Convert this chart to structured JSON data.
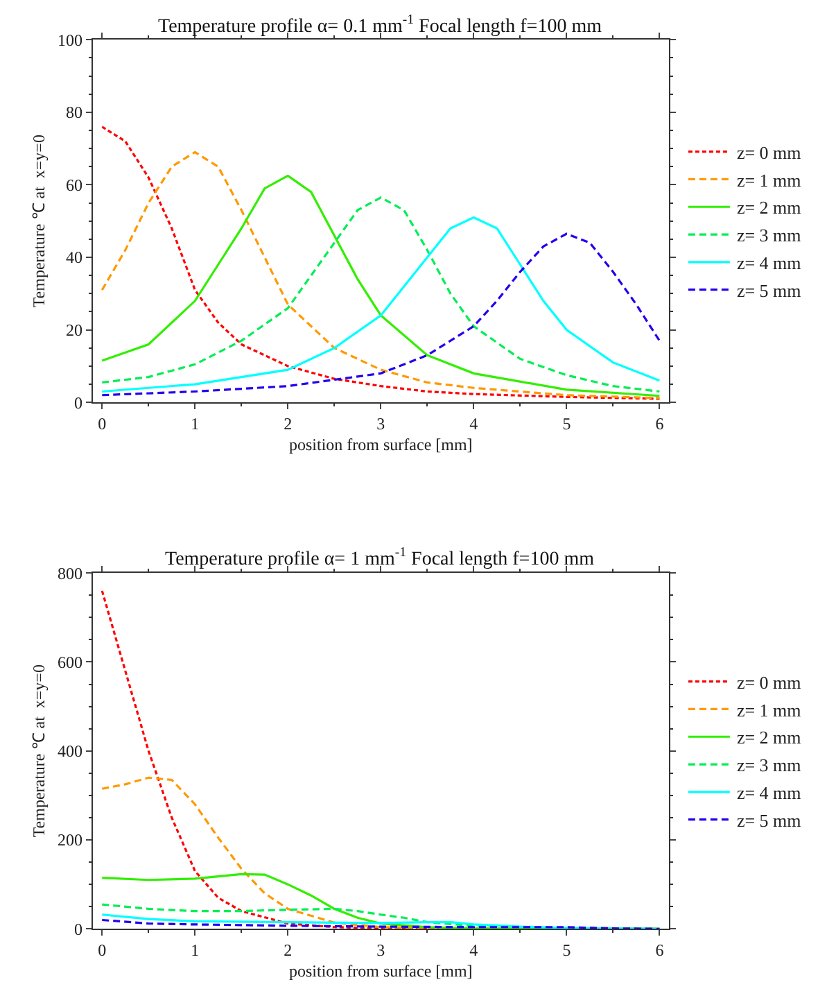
{
  "chart_data": [
    {
      "type": "line",
      "title": "Temperature profile α= 0.1 mm$^{-1}$ Focal length f=100 mm",
      "xlabel": "position from surface [mm]",
      "ylabel": "Temperature ℃ at  x=y=0",
      "xlim": [
        -0.1,
        6.1
      ],
      "xticks": [
        0,
        1,
        2,
        3,
        4,
        5,
        6
      ],
      "ylim": [
        0,
        100
      ],
      "yticks": [
        0,
        20,
        40,
        60,
        80,
        100
      ],
      "legend": "right",
      "series": [
        {
          "name": "z= 0 mm",
          "color": "#ff0000",
          "line_style": "dotted",
          "x": [
            0,
            0.25,
            0.5,
            0.75,
            1,
            1.25,
            1.5,
            2,
            2.5,
            3,
            3.5,
            4,
            5,
            6
          ],
          "values": [
            76,
            72,
            62,
            48,
            31,
            22,
            16,
            10,
            6.5,
            4.5,
            3,
            2.3,
            1.5,
            1
          ]
        },
        {
          "name": "z= 1 mm",
          "color": "#ff9900",
          "line_style": "dashed",
          "x": [
            0,
            0.25,
            0.5,
            0.75,
            1,
            1.25,
            1.5,
            1.75,
            2,
            2.5,
            3,
            3.5,
            4,
            5,
            6
          ],
          "values": [
            31,
            42,
            55,
            65,
            69,
            65,
            53,
            40,
            27,
            15,
            9,
            5.5,
            4,
            2,
            1.2
          ]
        },
        {
          "name": "z= 2 mm",
          "color": "#33ee00",
          "line_style": "solid",
          "x": [
            0,
            0.5,
            1,
            1.25,
            1.5,
            1.75,
            2,
            2.25,
            2.5,
            2.75,
            3,
            3.5,
            4,
            5,
            6
          ],
          "values": [
            11.5,
            16,
            28,
            38,
            48,
            59,
            62.5,
            58,
            46,
            34,
            24,
            13,
            8,
            3.5,
            1.8
          ]
        },
        {
          "name": "z= 3 mm",
          "color": "#00ee55",
          "line_style": "dashed",
          "x": [
            0,
            0.5,
            1,
            1.5,
            2,
            2.25,
            2.5,
            2.75,
            3,
            3.25,
            3.5,
            3.75,
            4,
            4.5,
            5,
            5.5,
            6
          ],
          "values": [
            5.5,
            7,
            10.5,
            17,
            26,
            35,
            44,
            53,
            56.5,
            53,
            42,
            30,
            21,
            12,
            7.5,
            4.5,
            3
          ]
        },
        {
          "name": "z= 4 mm",
          "color": "#00ffff",
          "line_style": "solid",
          "x": [
            0,
            1,
            2,
            2.5,
            3,
            3.25,
            3.5,
            3.75,
            4,
            4.25,
            4.5,
            4.75,
            5,
            5.5,
            6
          ],
          "values": [
            3,
            5,
            9,
            15,
            24,
            32,
            40,
            48,
            51,
            48,
            38,
            28,
            20,
            11,
            6
          ]
        },
        {
          "name": "z= 5 mm",
          "color": "#2200ee",
          "line_style": "dashed",
          "x": [
            0,
            1,
            2,
            3,
            3.5,
            4,
            4.25,
            4.5,
            4.75,
            5,
            5.25,
            5.5,
            5.75,
            6
          ],
          "values": [
            2,
            3,
            4.5,
            8,
            13,
            21,
            28,
            36,
            43,
            46.5,
            44,
            36,
            27,
            17
          ]
        }
      ]
    },
    {
      "type": "line",
      "title": "Temperature profile α= 1 mm$^{-1}$ Focal length f=100 mm",
      "xlabel": "position from surface [mm]",
      "ylabel": "Temperature ℃ at  x=y=0",
      "xlim": [
        -0.1,
        6.1
      ],
      "xticks": [
        0,
        1,
        2,
        3,
        4,
        5,
        6
      ],
      "ylim": [
        0,
        800
      ],
      "yticks": [
        0,
        200,
        400,
        600,
        800
      ],
      "legend": "right",
      "series": [
        {
          "name": "z= 0 mm",
          "color": "#ff0000",
          "line_style": "dotted",
          "x": [
            0,
            0.25,
            0.5,
            0.75,
            1,
            1.25,
            1.5,
            2,
            2.5,
            3,
            4,
            6
          ],
          "values": [
            760,
            580,
            400,
            250,
            130,
            70,
            40,
            12,
            4,
            1,
            0,
            0
          ]
        },
        {
          "name": "z= 1 mm",
          "color": "#ff9900",
          "line_style": "dashed",
          "x": [
            0,
            0.25,
            0.5,
            0.75,
            1,
            1.25,
            1.5,
            1.75,
            2,
            2.5,
            3,
            4,
            6
          ],
          "values": [
            315,
            325,
            340,
            335,
            280,
            205,
            135,
            80,
            45,
            14,
            4,
            0,
            0
          ]
        },
        {
          "name": "z= 2 mm",
          "color": "#33ee00",
          "line_style": "solid",
          "x": [
            0,
            0.5,
            1,
            1.5,
            1.75,
            2,
            2.25,
            2.5,
            2.75,
            3,
            3.5,
            4,
            6
          ],
          "values": [
            115,
            110,
            113,
            123,
            122,
            100,
            75,
            45,
            25,
            12,
            4,
            1,
            0
          ]
        },
        {
          "name": "z= 3 mm",
          "color": "#00ee55",
          "line_style": "dashed",
          "x": [
            0,
            0.5,
            1,
            1.5,
            2,
            2.5,
            2.75,
            3,
            3.25,
            3.5,
            4,
            5,
            6
          ],
          "values": [
            55,
            45,
            40,
            40,
            43,
            45,
            40,
            32,
            25,
            15,
            7,
            2,
            0
          ]
        },
        {
          "name": "z= 4 mm",
          "color": "#00ffff",
          "line_style": "solid",
          "x": [
            0,
            0.5,
            1,
            2,
            3,
            3.5,
            3.75,
            4,
            4.5,
            5,
            6
          ],
          "values": [
            32,
            22,
            17,
            15,
            13,
            15,
            15,
            10,
            5,
            2,
            0
          ]
        },
        {
          "name": "z= 5 mm",
          "color": "#2200ee",
          "line_style": "dashed",
          "x": [
            0,
            0.5,
            1,
            2,
            3,
            4,
            5,
            5.5,
            6
          ],
          "values": [
            20,
            12,
            10,
            7,
            5,
            4,
            4,
            1,
            0
          ]
        }
      ]
    }
  ]
}
